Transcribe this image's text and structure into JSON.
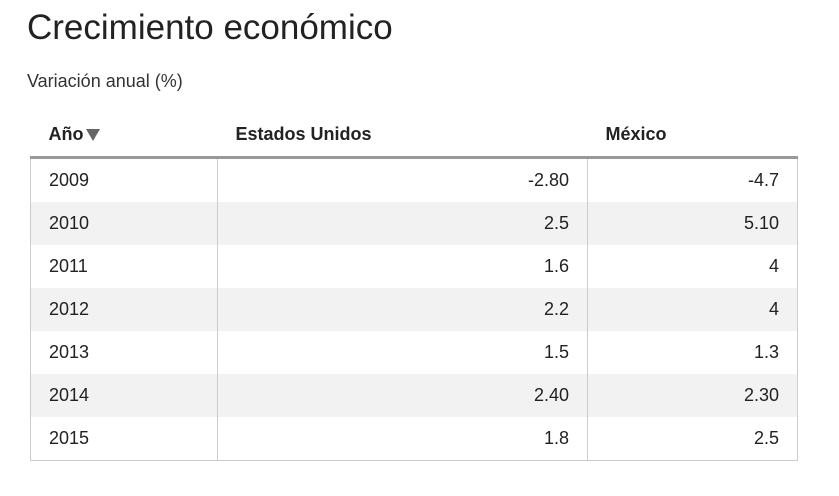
{
  "header": {
    "title": "Crecimiento económico",
    "subtitle": "Variación anual (%)"
  },
  "table": {
    "columns": [
      "Año",
      "Estados Unidos",
      "México"
    ],
    "rows": [
      [
        "2009",
        "-2.80",
        "-4.7"
      ],
      [
        "2010",
        "2.5",
        "5.10"
      ],
      [
        "2011",
        "1.6",
        "4"
      ],
      [
        "2012",
        "2.2",
        "4"
      ],
      [
        "2013",
        "1.5",
        "1.3"
      ],
      [
        "2014",
        "2.40",
        "2.30"
      ],
      [
        "2015",
        "1.8",
        "2.5"
      ]
    ]
  }
}
